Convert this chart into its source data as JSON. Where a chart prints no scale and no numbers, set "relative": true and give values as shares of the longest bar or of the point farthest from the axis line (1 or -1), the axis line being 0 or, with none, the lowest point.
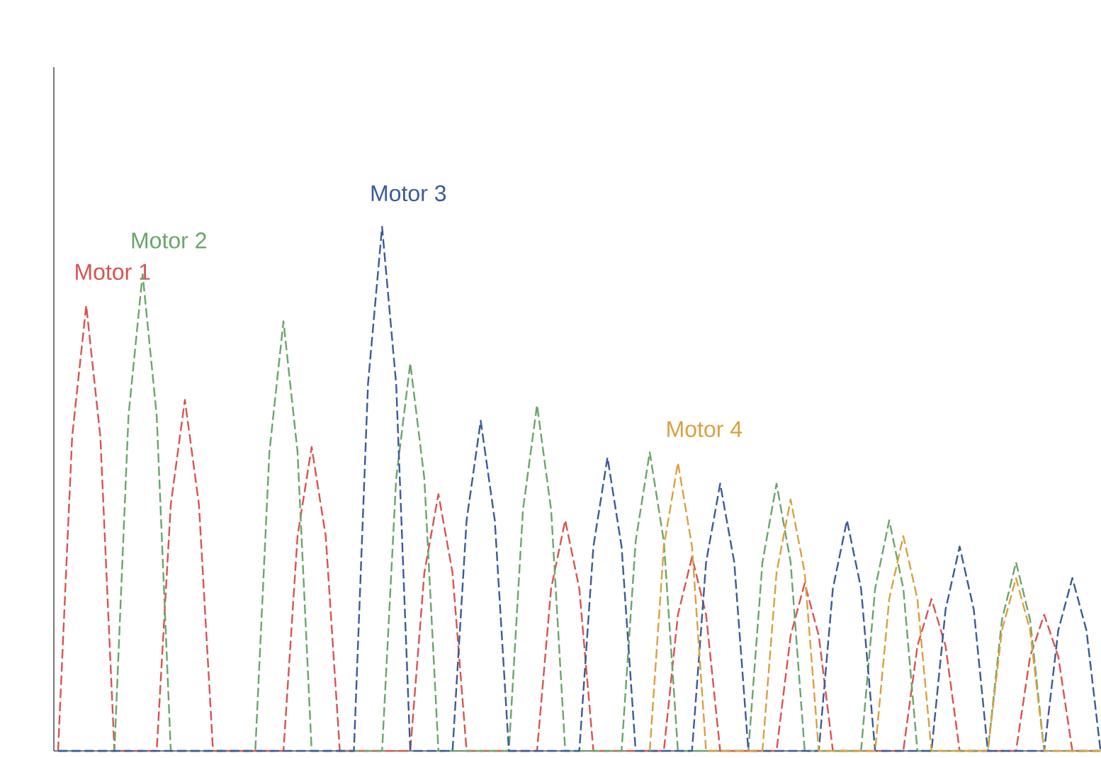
{
  "chart_data": {
    "type": "line",
    "relative": true,
    "line_style": "dashed",
    "categories": [
      null,
      null,
      null,
      null,
      null,
      null,
      null,
      null,
      null,
      null,
      null,
      null,
      null,
      null,
      null,
      null,
      null,
      null,
      null,
      null,
      null,
      null,
      null,
      null,
      null,
      null,
      null,
      null,
      null,
      null,
      null,
      null,
      null,
      null,
      null,
      null,
      null,
      null,
      null,
      null,
      null,
      null,
      null,
      null,
      null,
      null,
      null,
      null,
      null,
      null,
      null,
      null,
      null,
      null,
      null,
      null,
      null,
      null,
      null,
      null,
      null,
      null,
      null,
      null,
      null,
      null,
      null,
      null,
      null,
      null,
      null,
      null,
      null,
      null,
      null
    ],
    "series": [
      {
        "name": "Motor 1",
        "color": "#d9534f",
        "values": [
          0,
          0.6,
          0.85,
          0.6,
          0,
          0,
          0,
          0,
          0.47,
          0.67,
          0.47,
          0,
          0,
          0,
          0,
          0,
          0,
          0.41,
          0.58,
          0.41,
          0,
          0,
          0,
          0,
          0,
          0,
          0.34,
          0.49,
          0.34,
          0,
          0,
          0,
          0,
          0,
          0,
          0.31,
          0.44,
          0.31,
          0,
          0,
          0,
          0,
          0,
          0,
          0.26,
          0.37,
          0.26,
          0,
          0,
          0,
          0,
          0,
          0.22,
          0.32,
          0.22,
          0,
          0,
          0,
          0,
          0,
          0,
          0.2,
          0.29,
          0.2,
          0,
          0,
          0,
          0,
          0,
          0.18,
          0.26,
          0.18,
          0,
          0,
          0
        ]
      },
      {
        "name": "Motor 2",
        "color": "#6aa56a",
        "values": [
          0,
          0,
          0,
          0,
          0,
          0.64,
          0.91,
          0.64,
          0,
          0,
          0,
          0,
          0,
          0,
          0,
          0.57,
          0.82,
          0.57,
          0,
          0,
          0,
          0,
          0,
          0,
          0.52,
          0.74,
          0.52,
          0,
          0,
          0,
          0,
          0,
          0,
          0.46,
          0.66,
          0.46,
          0,
          0,
          0,
          0,
          0,
          0.4,
          0.57,
          0.4,
          0,
          0,
          0,
          0,
          0,
          0,
          0.36,
          0.51,
          0.36,
          0,
          0,
          0,
          0,
          0,
          0.31,
          0.44,
          0.31,
          0,
          0,
          0,
          0,
          0,
          0,
          0.25,
          0.36,
          0.25,
          0,
          0,
          0,
          0,
          0
        ]
      },
      {
        "name": "Motor 3",
        "color": "#3a5a9a",
        "values": [
          0,
          0,
          0,
          0,
          0,
          0,
          0,
          0,
          0,
          0,
          0,
          0,
          0,
          0,
          0,
          0,
          0,
          0,
          0,
          0,
          0,
          0,
          0.7,
          1,
          0.7,
          0,
          0,
          0,
          0,
          0.44,
          0.63,
          0.44,
          0,
          0,
          0,
          0,
          0,
          0,
          0.39,
          0.56,
          0.39,
          0,
          0,
          0,
          0,
          0,
          0.36,
          0.51,
          0.36,
          0,
          0,
          0,
          0,
          0,
          0,
          0.31,
          0.44,
          0.31,
          0,
          0,
          0,
          0,
          0,
          0.27,
          0.39,
          0.27,
          0,
          0,
          0,
          0,
          0,
          0.23,
          0.33,
          0.23,
          0
        ]
      },
      {
        "name": "Motor 4",
        "color": "#d9a040",
        "values": [
          null,
          null,
          null,
          null,
          null,
          null,
          null,
          null,
          null,
          null,
          null,
          null,
          null,
          null,
          null,
          null,
          null,
          null,
          null,
          null,
          null,
          null,
          null,
          null,
          null,
          null,
          null,
          null,
          null,
          null,
          null,
          null,
          null,
          null,
          null,
          null,
          null,
          null,
          null,
          null,
          null,
          null,
          0,
          0.39,
          0.55,
          0.39,
          0,
          0,
          0,
          0,
          0,
          0.34,
          0.48,
          0.34,
          0,
          0,
          0,
          0,
          0,
          0.29,
          0.41,
          0.29,
          0,
          0,
          0,
          0,
          0,
          0.23,
          0.33,
          0.23,
          0,
          0,
          0,
          0,
          0
        ]
      }
    ]
  }
}
